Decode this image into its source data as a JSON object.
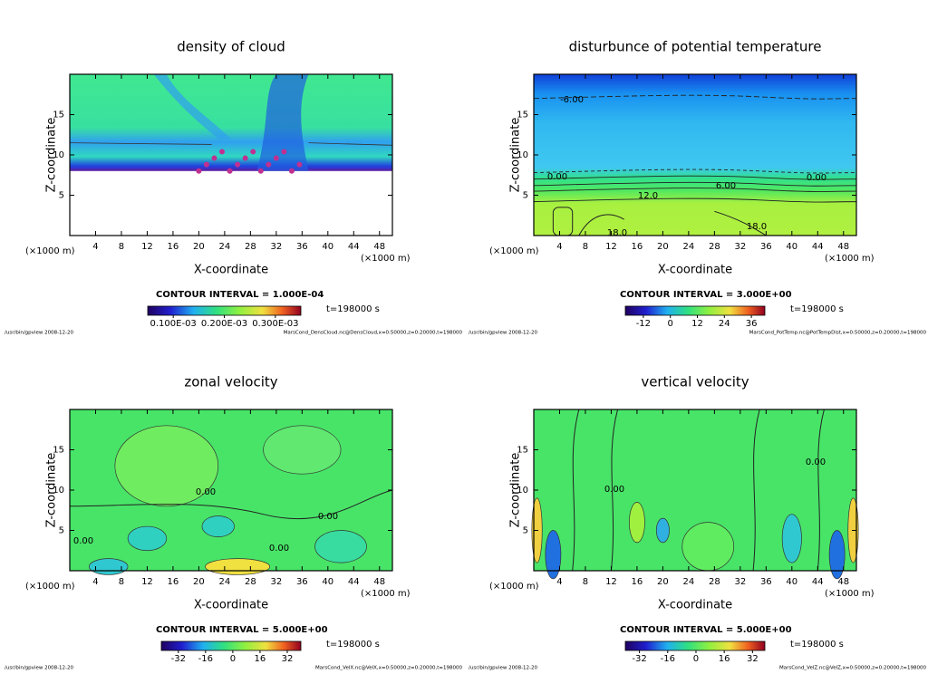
{
  "chart_data": [
    {
      "type": "contour",
      "title": "density of cloud",
      "xlabel": "X-coordinate",
      "ylabel": "Z-coordinate",
      "x_unit": "(×1000 m)",
      "xlim": [
        0,
        50
      ],
      "xticks": [
        4,
        8,
        12,
        16,
        20,
        24,
        28,
        32,
        36,
        40,
        44,
        48
      ],
      "ylim": [
        0,
        20
      ],
      "yticks": [
        5,
        10,
        15
      ],
      "contour_interval": "CONTOUR INTERVAL = 1.000E-04",
      "time": "t=198000 s",
      "clim": [
        5e-05,
        0.00035
      ],
      "cticks": [
        {
          "value": 0.0001,
          "label": "0.100E-03"
        },
        {
          "value": 0.0002,
          "label": "0.200E-03"
        },
        {
          "value": 0.0003,
          "label": "0.300E-03"
        }
      ],
      "footer_left": "/usr/bin/gpview   2008-12-20",
      "footer_right": "MarsCond_DensCloud.nc@DensCloud,x=0:50000,z=0:20000,t=198000"
    },
    {
      "type": "contour",
      "title": "disturbunce of potential temperature",
      "xlabel": "X-coordinate",
      "ylabel": "Z-coordinate",
      "x_unit": "(×1000 m)",
      "xlim": [
        0,
        50
      ],
      "xticks": [
        4,
        8,
        12,
        16,
        20,
        24,
        28,
        32,
        36,
        40,
        44,
        48
      ],
      "ylim": [
        0,
        20
      ],
      "yticks": [
        5,
        10,
        15
      ],
      "contour_interval": "CONTOUR INTERVAL = 3.000E+00",
      "time": "t=198000 s",
      "clim": [
        -20,
        42
      ],
      "cticks": [
        -12,
        0,
        12,
        24,
        36
      ],
      "contour_labels": [
        "-6.00",
        "0.00",
        "0.00",
        "6.00",
        "12.0",
        "18.0",
        "18.0"
      ],
      "footer_left": "/usr/bin/gpview   2008-12-20",
      "footer_right": "MarsCond_PotTemp.nc@PotTempDist,x=0:50000,z=0:20000,t=198000"
    },
    {
      "type": "contour",
      "title": "zonal velocity",
      "xlabel": "X-coordinate",
      "ylabel": "Z-coordinate",
      "x_unit": "(×1000 m)",
      "xlim": [
        0,
        50
      ],
      "xticks": [
        4,
        8,
        12,
        16,
        20,
        24,
        28,
        32,
        36,
        40,
        44,
        48
      ],
      "ylim": [
        0,
        20
      ],
      "yticks": [
        5,
        10,
        15
      ],
      "contour_interval": "CONTOUR INTERVAL = 5.000E+00",
      "time": "t=198000 s",
      "clim": [
        -42,
        40
      ],
      "cticks": [
        -32,
        -16,
        0,
        16,
        32
      ],
      "contour_labels": [
        "0.00",
        "0.00",
        "0.00",
        "0.00"
      ],
      "footer_left": "/usr/bin/gpview   2008-12-20",
      "footer_right": "MarsCond_VelX.nc@VelX,x=0:50000,z=0:20000,t=198000"
    },
    {
      "type": "contour",
      "title": "vertical velocity",
      "xlabel": "X-coordinate",
      "ylabel": "Z-coordinate",
      "x_unit": "(×1000 m)",
      "xlim": [
        0,
        50
      ],
      "xticks": [
        4,
        8,
        12,
        16,
        20,
        24,
        28,
        32,
        36,
        40,
        44,
        48
      ],
      "ylim": [
        0,
        20
      ],
      "yticks": [
        5,
        10,
        15
      ],
      "contour_interval": "CONTOUR INTERVAL = 5.000E+00",
      "time": "t=198000 s",
      "clim": [
        -40,
        39
      ],
      "cticks": [
        -32,
        -16,
        0,
        16,
        32
      ],
      "contour_labels": [
        "0.00",
        "0.00"
      ],
      "footer_left": "/usr/bin/gpview   2008-12-20",
      "footer_right": "MarsCond_VelZ.nc@VelZ,x=0:50000,z=0:20000,t=198000"
    }
  ]
}
